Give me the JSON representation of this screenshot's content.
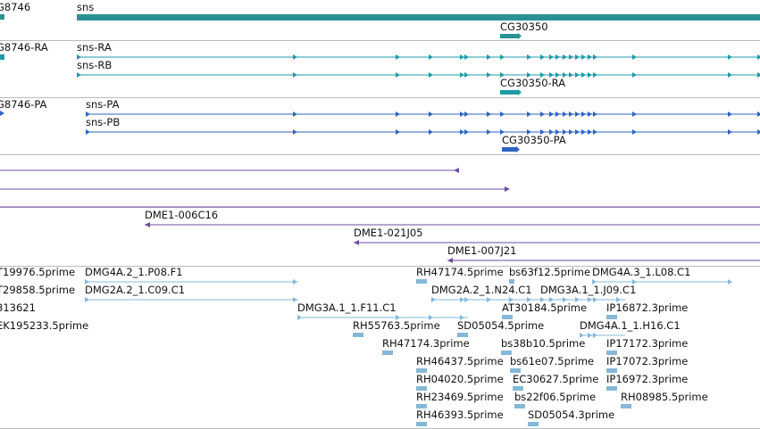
{
  "colors": {
    "gene": "#2a9294",
    "mrna": "#1f9aa8",
    "protein": "#2f65c0",
    "bac": "#6c4ea0",
    "est": "#86b8d6",
    "divider": "#bbbbbb"
  },
  "tracks": {
    "genes": {
      "features": [
        {
          "label": "G8746",
          "strand": "+",
          "color": "gene"
        },
        {
          "label": "sns",
          "strand": "+",
          "color": "gene"
        },
        {
          "label": "CG30350",
          "strand": "+",
          "color": "gene"
        }
      ]
    },
    "transcripts": {
      "features": [
        {
          "label": "G8746-RA",
          "strand": "+",
          "color": "mrna"
        },
        {
          "label": "sns-RA",
          "strand": "+",
          "color": "mrna"
        },
        {
          "label": "sns-RB",
          "strand": "+",
          "color": "mrna"
        },
        {
          "label": "CG30350-RA",
          "strand": "+",
          "color": "mrna"
        }
      ]
    },
    "proteins": {
      "features": [
        {
          "label": "G8746-PA",
          "strand": "+",
          "color": "protein"
        },
        {
          "label": "sns-PA",
          "strand": "+",
          "color": "protein"
        },
        {
          "label": "sns-PB",
          "strand": "+",
          "color": "protein"
        },
        {
          "label": "CG30350-PA",
          "strand": "+",
          "color": "protein"
        }
      ]
    },
    "bac_clones": {
      "features": [
        {
          "label": "DME1-006C16",
          "strand": "-",
          "color": "bac"
        },
        {
          "label": "DME1-021J05",
          "strand": "-",
          "color": "bac"
        },
        {
          "label": "DME1-007J21",
          "strand": "-",
          "color": "bac"
        }
      ]
    },
    "est_alignments": {
      "features": [
        {
          "label": "T19976.5prime",
          "strand": "+",
          "color": "est"
        },
        {
          "label": "DMG4A.2_1.P08.F1",
          "strand": "+",
          "color": "est"
        },
        {
          "label": "RH47174.5prime",
          "strand": "-",
          "color": "est"
        },
        {
          "label": "bs63f12.5prime",
          "strand": "+",
          "color": "est"
        },
        {
          "label": "DMG4A.3_1.L08.C1",
          "strand": "+",
          "color": "est"
        },
        {
          "label": "T29858.5prime",
          "strand": "+",
          "color": "est"
        },
        {
          "label": "DMG2A.2_1.C09.C1",
          "strand": "+",
          "color": "est"
        },
        {
          "label": "DMG2A.2_1.N24.C1",
          "strand": "+",
          "color": "est"
        },
        {
          "label": "DMG3A.1_1.J09.C1",
          "strand": "+",
          "color": "est"
        },
        {
          "label": "313621",
          "strand": "+",
          "color": "est"
        },
        {
          "label": "DMG3A.1_1.F11.C1",
          "strand": "+",
          "color": "est"
        },
        {
          "label": "AT30184.5prime",
          "strand": "+",
          "color": "est"
        },
        {
          "label": "IP16872.3prime",
          "strand": "+",
          "color": "est"
        },
        {
          "label": "EK195233.5prime",
          "strand": "+",
          "color": "est"
        },
        {
          "label": "RH55763.5prime",
          "strand": "+",
          "color": "est"
        },
        {
          "label": "SD05054.5prime",
          "strand": "+",
          "color": "est"
        },
        {
          "label": "DMG4A.1_1.H16.C1",
          "strand": "+",
          "color": "est"
        },
        {
          "label": "RH47174.3prime",
          "strand": "-",
          "color": "est"
        },
        {
          "label": "bs38b10.5prime",
          "strand": "+",
          "color": "est"
        },
        {
          "label": "IP17172.3prime",
          "strand": "+",
          "color": "est"
        },
        {
          "label": "RH46437.5prime",
          "strand": "+",
          "color": "est"
        },
        {
          "label": "bs61e07.5prime",
          "strand": "+",
          "color": "est"
        },
        {
          "label": "IP17072.3prime",
          "strand": "+",
          "color": "est"
        },
        {
          "label": "RH04020.5prime",
          "strand": "+",
          "color": "est"
        },
        {
          "label": "EC30627.5prime",
          "strand": "+",
          "color": "est"
        },
        {
          "label": "IP16972.3prime",
          "strand": "+",
          "color": "est"
        },
        {
          "label": "RH23469.5prime",
          "strand": "+",
          "color": "est"
        },
        {
          "label": "bs22f06.5prime",
          "strand": "+",
          "color": "est"
        },
        {
          "label": "RH08985.5prime",
          "strand": "+",
          "color": "est"
        },
        {
          "label": "RH46393.5prime",
          "strand": "+",
          "color": "est"
        },
        {
          "label": "SD05054.3prime",
          "strand": "+",
          "color": "est"
        }
      ]
    }
  }
}
